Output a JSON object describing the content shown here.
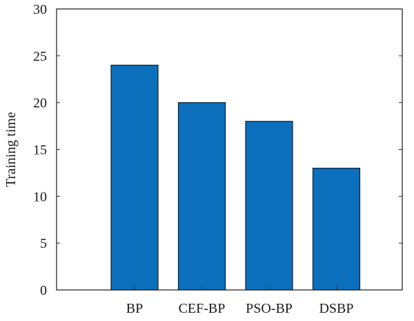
{
  "chart_data": {
    "type": "bar",
    "title": "",
    "xlabel": "",
    "ylabel": "Training time",
    "categories": [
      "BP",
      "CEF-BP",
      "PSO-BP",
      "DSBP"
    ],
    "values": [
      24,
      20,
      18,
      13
    ],
    "ylim": [
      0,
      30
    ],
    "yticks": [
      0,
      5,
      10,
      15,
      20,
      25,
      30
    ],
    "grid": false,
    "legend": "none",
    "colors": {
      "bar_fill": "#0b6fbc",
      "bar_stroke": "#0a1f33",
      "axis": "#262626"
    }
  }
}
